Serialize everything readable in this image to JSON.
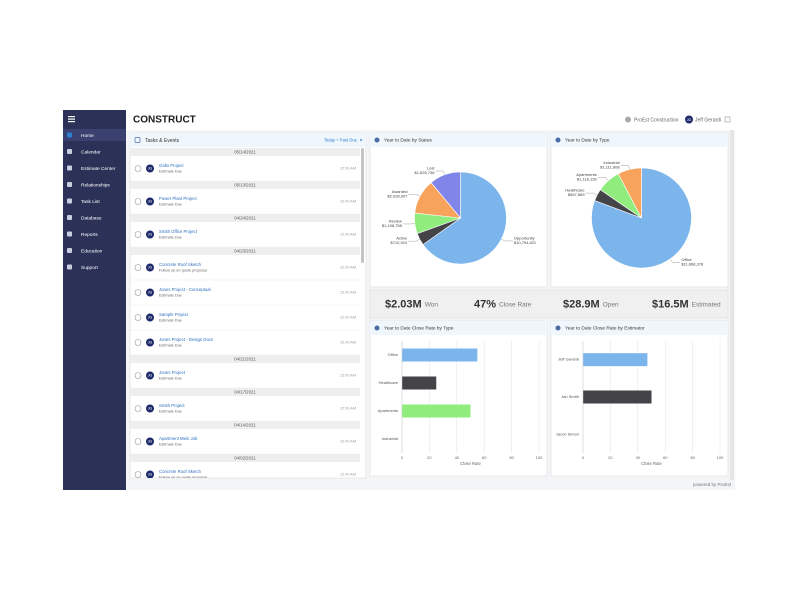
{
  "app": {
    "logo": "CONSTRUCT",
    "company": "ProEst Construction",
    "user_initials": "JG",
    "user": "Jeff Gerardi",
    "footer": "powered by ProEst"
  },
  "sidebar": {
    "items": [
      "Home",
      "Calendar",
      "Estimate Center",
      "Relationships",
      "Task List",
      "Database",
      "Reports",
      "Education",
      "Support"
    ]
  },
  "tasks": {
    "title": "Tasks & Events",
    "filter": "Today + Past Due",
    "avatar": "JG",
    "groups": [
      {
        "date": "05/14/2021",
        "items": [
          {
            "title": "Gallo Project",
            "subtitle": "Estimate Due",
            "time": "12:00 AM"
          }
        ]
      },
      {
        "date": "05/13/2021",
        "items": [
          {
            "title": "Power Plant Project",
            "subtitle": "Estimate Due",
            "time": "12:00 AM"
          }
        ]
      },
      {
        "date": "04/24/2021",
        "items": [
          {
            "title": "Smith Office Project",
            "subtitle": "Estimate Due",
            "time": "12:00 AM"
          }
        ]
      },
      {
        "date": "04/23/2021",
        "items": [
          {
            "title": "Concrete Roof Sketch",
            "subtitle": "Follow up on quote proposal",
            "time": "12:00 AM"
          },
          {
            "title": "Jones Project - Conceptual",
            "subtitle": "Estimate Due",
            "time": "12:00 AM"
          },
          {
            "title": "Sample Project",
            "subtitle": "Estimate Due",
            "time": "12:00 AM"
          },
          {
            "title": "Jones Project - Design Docs",
            "subtitle": "Estimate Due",
            "time": "12:00 AM"
          }
        ]
      },
      {
        "date": "04/21/2021",
        "items": [
          {
            "title": "Jones Project",
            "subtitle": "Estimate Due",
            "time": "12:00 AM"
          }
        ]
      },
      {
        "date": "04/17/2021",
        "items": [
          {
            "title": "Smith Project",
            "subtitle": "Estimate Due",
            "time": "12:00 AM"
          }
        ]
      },
      {
        "date": "04/14/2021",
        "items": [
          {
            "title": "Apartment Mein Job",
            "subtitle": "Estimate Due",
            "time": "12:00 AM"
          }
        ]
      },
      {
        "date": "04/02/2021",
        "items": [
          {
            "title": "Concrete Roof Sketch",
            "subtitle": "Follow up on quote proposal",
            "time": "12:00 AM"
          }
        ]
      }
    ]
  },
  "kpis": [
    {
      "value": "$2.03M",
      "label": "Won"
    },
    {
      "value": "47%",
      "label": "Close Rate"
    },
    {
      "value": "$28.9M",
      "label": "Open"
    },
    {
      "value": "$16.5M",
      "label": "Estimated"
    }
  ],
  "chart_data": [
    {
      "type": "pie",
      "title": "Year to Date by Status",
      "categories": [
        "Opportunity",
        "Active",
        "Review",
        "Awarded",
        "Lost"
      ],
      "values": [
        10794821,
        710910,
        1198758,
        2028007,
        1826736
      ],
      "value_labels": [
        "$10,794,821",
        "$710,910",
        "$1,198,758",
        "$2,028,007",
        "$1,826,736"
      ],
      "colors": [
        "#7cb5ec",
        "#434348",
        "#90ed7d",
        "#f7a35c",
        "#8085e9"
      ]
    },
    {
      "type": "pie",
      "title": "Year to Date by Type",
      "categories": [
        "Office",
        "Healthcare",
        "Apartments",
        "Industrial"
      ],
      "values": [
        11668378,
        567869,
        1118128,
        1111808
      ],
      "value_labels": [
        "$11,668,378",
        "$567,869",
        "$1,118,128",
        "$1,111,808"
      ],
      "colors": [
        "#7cb5ec",
        "#434348",
        "#90ed7d",
        "#f7a35c"
      ]
    },
    {
      "type": "bar",
      "title": "Year to Date Close Rate by Type",
      "categories": [
        "Office",
        "Healthcare",
        "Apartments",
        "Industrial"
      ],
      "values": [
        55,
        25,
        50,
        0
      ],
      "colors": [
        "#7cb5ec",
        "#434348",
        "#90ed7d",
        "#f7a35c"
      ],
      "xlim": [
        0,
        100
      ],
      "xticks": [
        0,
        20,
        40,
        60,
        80,
        100
      ],
      "xlabel": "Close Rate",
      "grid": true
    },
    {
      "type": "bar",
      "title": "Year to Date Close Rate by Estimator",
      "categories": [
        "Jeff Gerardi",
        "Jan Smith",
        "Jacob Simon"
      ],
      "values": [
        47,
        50,
        0
      ],
      "colors": [
        "#7cb5ec",
        "#434348",
        "#90ed7d"
      ],
      "xlim": [
        0,
        100
      ],
      "xticks": [
        0,
        20,
        40,
        60,
        80,
        100
      ],
      "xlabel": "Close Rate",
      "grid": true
    }
  ]
}
